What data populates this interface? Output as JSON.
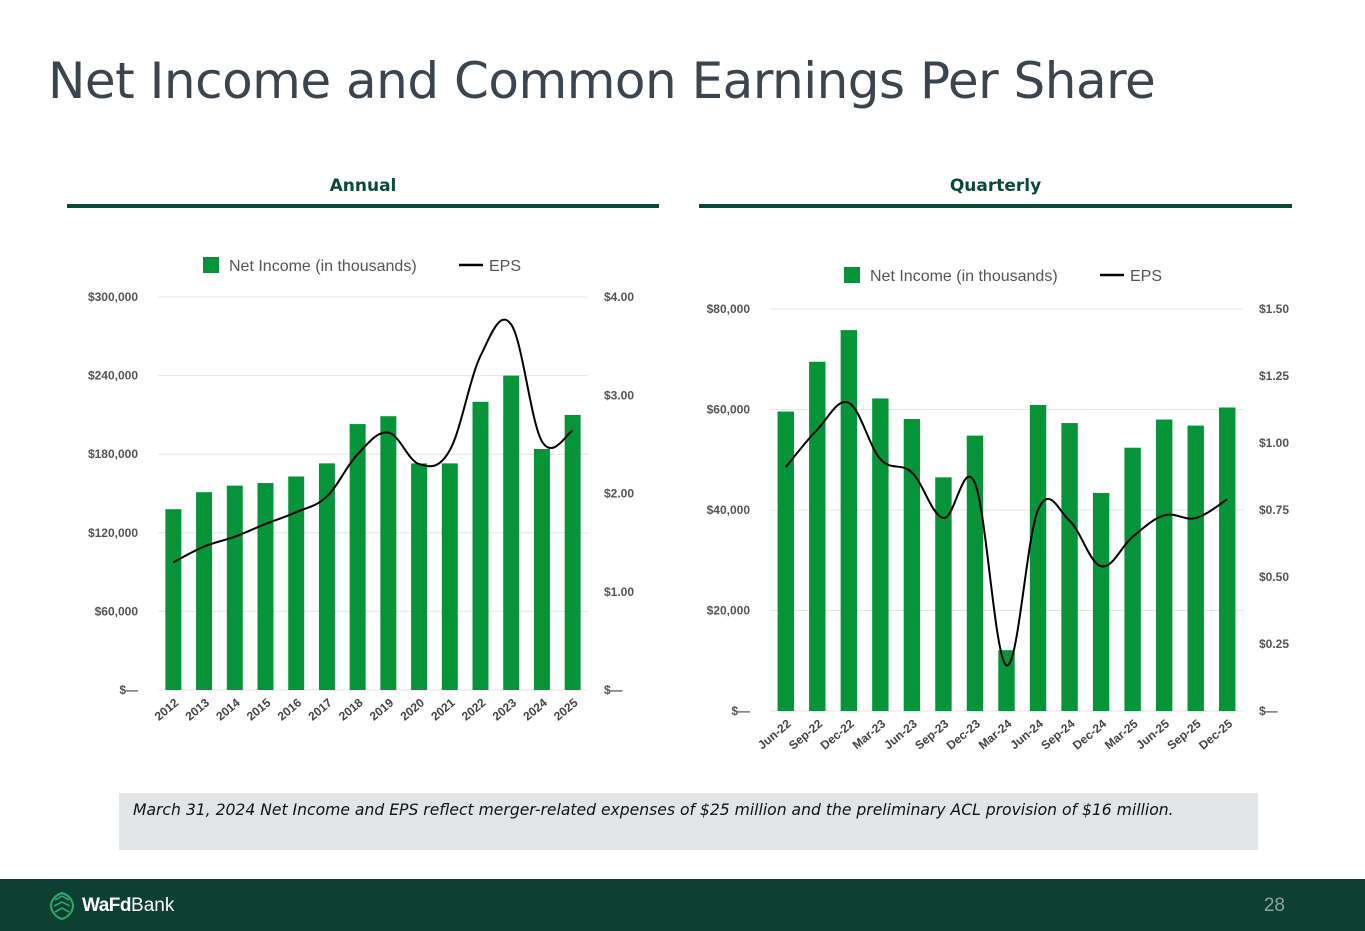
{
  "title": "Net Income and Common Earnings Per Share",
  "sections": {
    "annual": "Annual",
    "quarterly": "Quarterly"
  },
  "note": "March 31, 2024 Net Income and EPS reflect merger-related expenses of $25 million and the preliminary ACL provision of $16 million.",
  "footer": {
    "brand_bold": "WaFd",
    "brand_regular": "Bank",
    "page_number": "28"
  },
  "colors": {
    "bar": "#059439",
    "line": "#000000",
    "accent": "#0b4a3a",
    "footer_bg": "#0b4033"
  },
  "chart_data": [
    {
      "type": "bar+line",
      "title": "Annual",
      "categories": [
        "2012",
        "2013",
        "2014",
        "2015",
        "2016",
        "2017",
        "2018",
        "2019",
        "2020",
        "2021",
        "2022",
        "2023",
        "2024",
        "2025"
      ],
      "series": [
        {
          "name": "Net Income (in thousands)",
          "kind": "bar",
          "axis": "left",
          "values": [
            138000,
            151000,
            156000,
            158000,
            163000,
            173000,
            203000,
            209000,
            173000,
            173000,
            220000,
            240000,
            184000,
            210000
          ]
        },
        {
          "name": "EPS",
          "kind": "line",
          "axis": "right",
          "values": [
            1.3,
            1.46,
            1.56,
            1.69,
            1.81,
            1.97,
            2.4,
            2.62,
            2.3,
            2.44,
            3.4,
            3.72,
            2.53,
            2.64
          ]
        }
      ],
      "left_axis": {
        "ticks": [
          0,
          60000,
          120000,
          180000,
          240000,
          300000
        ],
        "labels": [
          "$—",
          "$60,000",
          "$120,000",
          "$180,000",
          "$240,000",
          "$300,000"
        ],
        "ylim": [
          0,
          300000
        ]
      },
      "right_axis": {
        "ticks": [
          0,
          1,
          2,
          3,
          4
        ],
        "labels": [
          "$—",
          "$1.00",
          "$2.00",
          "$3.00",
          "$4.00"
        ],
        "ylim": [
          0,
          4
        ]
      },
      "legend": [
        "Net Income (in thousands)",
        "EPS"
      ],
      "legend_position": "top-center",
      "grid": true
    },
    {
      "type": "bar+line",
      "title": "Quarterly",
      "categories": [
        "Jun-22",
        "Sep-22",
        "Dec-22",
        "Mar-23",
        "Jun-23",
        "Sep-23",
        "Dec-23",
        "Mar-24",
        "Jun-24",
        "Sep-24",
        "Dec-24",
        "Mar-25",
        "Jun-25",
        "Sep-25",
        "Dec-25"
      ],
      "series": [
        {
          "name": "Net Income (in thousands)",
          "kind": "bar",
          "axis": "left",
          "values": [
            59600,
            69500,
            75800,
            62200,
            58100,
            46500,
            54800,
            12100,
            60900,
            57300,
            43400,
            52400,
            58000,
            56800,
            60400
          ]
        },
        {
          "name": "EPS",
          "kind": "line",
          "axis": "right",
          "values": [
            0.91,
            1.05,
            1.15,
            0.94,
            0.89,
            0.72,
            0.85,
            0.17,
            0.75,
            0.71,
            0.54,
            0.65,
            0.73,
            0.72,
            0.79
          ]
        }
      ],
      "left_axis": {
        "ticks": [
          0,
          20000,
          40000,
          60000,
          80000
        ],
        "labels": [
          "$—",
          "$20,000",
          "$40,000",
          "$60,000",
          "$80,000"
        ],
        "ylim": [
          0,
          80000
        ]
      },
      "right_axis": {
        "ticks": [
          0,
          0.25,
          0.5,
          0.75,
          1.0,
          1.25,
          1.5
        ],
        "labels": [
          "$—",
          "$0.25",
          "$0.50",
          "$0.75",
          "$1.00",
          "$1.25",
          "$1.50"
        ],
        "ylim": [
          0,
          1.5
        ]
      },
      "legend": [
        "Net Income (in thousands)",
        "EPS"
      ],
      "legend_position": "top-center",
      "grid": true
    }
  ]
}
